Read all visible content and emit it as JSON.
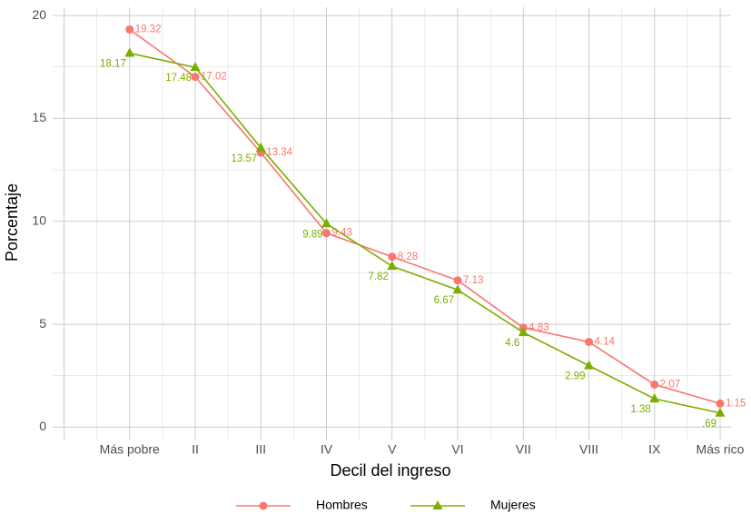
{
  "chart_data": {
    "type": "line",
    "x_label": "Decil del ingreso",
    "y_label": "Porcentaje",
    "categories": [
      null,
      "Más pobre",
      "II",
      "III",
      "IV",
      "V",
      "VI",
      "VII",
      "VIII",
      "IX",
      "Más rico"
    ],
    "series": [
      {
        "name": "Hombres",
        "color": "#F8766D",
        "marker": "circle",
        "values": [
          null,
          19.32,
          17.02,
          13.34,
          9.43,
          8.28,
          7.13,
          4.83,
          4.14,
          2.07,
          1.15
        ]
      },
      {
        "name": "Mujeres",
        "color": "#7CAE00",
        "marker": "triangle",
        "values": [
          null,
          18.17,
          17.48,
          13.57,
          9.89,
          7.82,
          6.67,
          4.6,
          2.99,
          1.38,
          0.69
        ],
        "value_labels": [
          null,
          "18.17",
          "17.48",
          "13.57",
          "9.89",
          "7.82",
          "6.67",
          "4.6",
          "2.99",
          "1.38",
          ".69"
        ]
      }
    ],
    "ylim": [
      -0.6,
      20.4
    ],
    "yticks": [
      0,
      5,
      10,
      15,
      20
    ],
    "grid": true,
    "legend": "bottom"
  }
}
